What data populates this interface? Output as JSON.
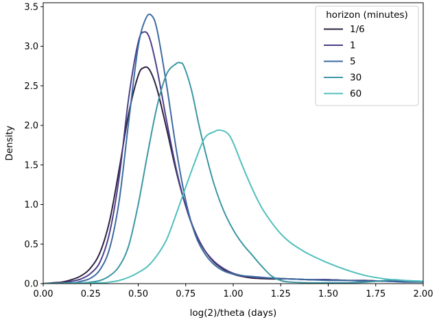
{
  "chart_data": {
    "type": "line",
    "xlabel": "log(2)/theta (days)",
    "ylabel": "Density",
    "xlim": [
      0,
      2
    ],
    "ylim": [
      0,
      3.55
    ],
    "xticks": [
      "0.00",
      "0.25",
      "0.50",
      "0.75",
      "1.00",
      "1.25",
      "1.50",
      "1.75",
      "2.00"
    ],
    "yticks": [
      "0.0",
      "0.5",
      "1.0",
      "1.5",
      "2.0",
      "2.5",
      "3.0",
      "3.5"
    ],
    "grid": false,
    "legend": {
      "title": "horizon (minutes)",
      "placement": "top-right"
    },
    "series": [
      {
        "name": "1/6",
        "color": "#2b1f3d",
        "x": [
          0.0,
          0.05,
          0.1,
          0.15,
          0.2,
          0.25,
          0.3,
          0.35,
          0.4,
          0.45,
          0.5,
          0.53,
          0.56,
          0.6,
          0.65,
          0.7,
          0.75,
          0.8,
          0.85,
          0.9,
          0.95,
          1.0,
          1.05,
          1.1,
          1.2,
          1.3,
          1.4,
          1.5,
          1.6,
          1.7,
          1.8,
          1.9,
          2.0
        ],
        "y": [
          0.0,
          0.01,
          0.02,
          0.05,
          0.1,
          0.2,
          0.4,
          0.8,
          1.45,
          2.15,
          2.63,
          2.73,
          2.7,
          2.45,
          1.95,
          1.42,
          0.98,
          0.65,
          0.42,
          0.27,
          0.18,
          0.12,
          0.09,
          0.07,
          0.06,
          0.06,
          0.05,
          0.05,
          0.04,
          0.04,
          0.03,
          0.03,
          0.03
        ]
      },
      {
        "name": "1",
        "color": "#4a3e87",
        "x": [
          0.0,
          0.1,
          0.15,
          0.2,
          0.25,
          0.3,
          0.35,
          0.4,
          0.45,
          0.5,
          0.53,
          0.56,
          0.6,
          0.65,
          0.7,
          0.75,
          0.8,
          0.85,
          0.9,
          0.95,
          1.0,
          1.05,
          1.1,
          1.2,
          1.3,
          1.4,
          1.5,
          1.6,
          1.7,
          1.8,
          1.9,
          2.0
        ],
        "y": [
          0.0,
          0.01,
          0.03,
          0.06,
          0.13,
          0.28,
          0.65,
          1.35,
          2.35,
          3.05,
          3.18,
          3.1,
          2.7,
          2.05,
          1.45,
          0.98,
          0.64,
          0.42,
          0.28,
          0.19,
          0.13,
          0.1,
          0.08,
          0.07,
          0.06,
          0.05,
          0.05,
          0.04,
          0.04,
          0.03,
          0.03,
          0.03
        ]
      },
      {
        "name": "5",
        "color": "#3b6aa0",
        "x": [
          0.0,
          0.15,
          0.2,
          0.25,
          0.3,
          0.35,
          0.4,
          0.45,
          0.5,
          0.54,
          0.57,
          0.6,
          0.65,
          0.7,
          0.75,
          0.8,
          0.85,
          0.9,
          0.95,
          1.0,
          1.05,
          1.1,
          1.2,
          1.3,
          1.4,
          1.5,
          1.6,
          1.7,
          1.8,
          1.9,
          2.0
        ],
        "y": [
          0.0,
          0.01,
          0.03,
          0.07,
          0.18,
          0.45,
          1.05,
          2.05,
          3.0,
          3.35,
          3.39,
          3.2,
          2.5,
          1.7,
          1.05,
          0.62,
          0.38,
          0.24,
          0.16,
          0.12,
          0.1,
          0.09,
          0.07,
          0.06,
          0.05,
          0.04,
          0.04,
          0.03,
          0.03,
          0.02,
          0.02
        ]
      },
      {
        "name": "30",
        "color": "#3a96a3",
        "x": [
          0.0,
          0.2,
          0.25,
          0.3,
          0.35,
          0.4,
          0.45,
          0.5,
          0.55,
          0.6,
          0.65,
          0.7,
          0.72,
          0.74,
          0.78,
          0.82,
          0.86,
          0.9,
          0.95,
          1.0,
          1.05,
          1.1,
          1.15,
          1.2,
          1.25,
          1.3,
          1.4,
          1.5,
          1.6,
          1.7,
          1.8,
          1.85,
          1.9,
          2.0
        ],
        "y": [
          0.0,
          0.01,
          0.02,
          0.04,
          0.1,
          0.22,
          0.48,
          1.0,
          1.65,
          2.25,
          2.65,
          2.78,
          2.79,
          2.75,
          2.45,
          2.0,
          1.6,
          1.25,
          0.92,
          0.68,
          0.5,
          0.36,
          0.22,
          0.1,
          0.04,
          0.02,
          0.01,
          0.01,
          0.01,
          0.02,
          0.04,
          0.05,
          0.04,
          0.03
        ]
      },
      {
        "name": "60",
        "color": "#4fbfbc",
        "x": [
          0.0,
          0.3,
          0.35,
          0.4,
          0.45,
          0.5,
          0.55,
          0.6,
          0.65,
          0.7,
          0.75,
          0.8,
          0.85,
          0.9,
          0.93,
          0.97,
          1.0,
          1.05,
          1.1,
          1.15,
          1.2,
          1.25,
          1.3,
          1.35,
          1.4,
          1.5,
          1.6,
          1.7,
          1.8,
          1.9,
          2.0
        ],
        "y": [
          0.0,
          0.01,
          0.02,
          0.04,
          0.08,
          0.14,
          0.22,
          0.36,
          0.56,
          0.88,
          1.22,
          1.55,
          1.84,
          1.92,
          1.94,
          1.9,
          1.78,
          1.48,
          1.2,
          0.96,
          0.78,
          0.63,
          0.52,
          0.44,
          0.37,
          0.26,
          0.17,
          0.1,
          0.06,
          0.04,
          0.03
        ]
      }
    ]
  }
}
